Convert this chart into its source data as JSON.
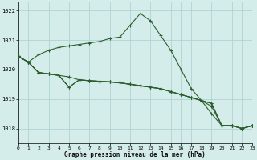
{
  "title": "Graphe pression niveau de la mer (hPa)",
  "bg_color": "#d4ecea",
  "grid_color": "#aacfcf",
  "line_color": "#2d5f2d",
  "xlim": [
    0,
    23
  ],
  "ylim": [
    1017.5,
    1022.3
  ],
  "yticks": [
    1018,
    1019,
    1020,
    1021,
    1022
  ],
  "xtick_labels": [
    "0",
    "1",
    "2",
    "3",
    "4",
    "5",
    "6",
    "7",
    "8",
    "9",
    "10",
    "11",
    "12",
    "13",
    "14",
    "15",
    "16",
    "17",
    "18",
    "19",
    "20",
    "21",
    "22",
    "23"
  ],
  "series": [
    [
      1020.45,
      1020.25,
      1020.5,
      1020.65,
      1020.75,
      1020.8,
      1020.85,
      1020.9,
      1020.95,
      1021.05,
      1021.1,
      1021.5,
      1021.9,
      1021.65,
      1021.15,
      1020.65,
      1020.0,
      1019.35,
      1018.95,
      1018.75,
      1018.1,
      1018.1,
      1018.0,
      1018.1
    ],
    [
      1020.45,
      1020.25,
      1019.9,
      1019.85,
      1019.8,
      1019.75,
      1019.65,
      1019.62,
      1019.6,
      1019.58,
      1019.55,
      1019.5,
      1019.45,
      1019.4,
      1019.35,
      1019.25,
      1019.15,
      1019.05,
      1018.95,
      1018.85,
      1018.1,
      1018.1,
      1018.0,
      1018.1
    ],
    [
      1020.45,
      1020.25,
      1019.9,
      1019.85,
      1019.8,
      1019.4,
      1019.65,
      1019.62,
      1019.6,
      1019.58,
      1019.55,
      1019.5,
      1019.45,
      1019.4,
      1019.35,
      1019.25,
      1019.15,
      1019.05,
      1018.95,
      1018.85,
      1018.1,
      1018.1,
      1018.0,
      1018.1
    ],
    [
      1020.45,
      1020.25,
      1019.9,
      1019.85,
      1019.8,
      1019.4,
      1019.65,
      1019.62,
      1019.6,
      1019.58,
      1019.55,
      1019.5,
      1019.45,
      1019.4,
      1019.35,
      1019.25,
      1019.15,
      1019.05,
      1018.95,
      1018.5,
      1018.1,
      1018.1,
      1018.0,
      1018.1
    ]
  ]
}
